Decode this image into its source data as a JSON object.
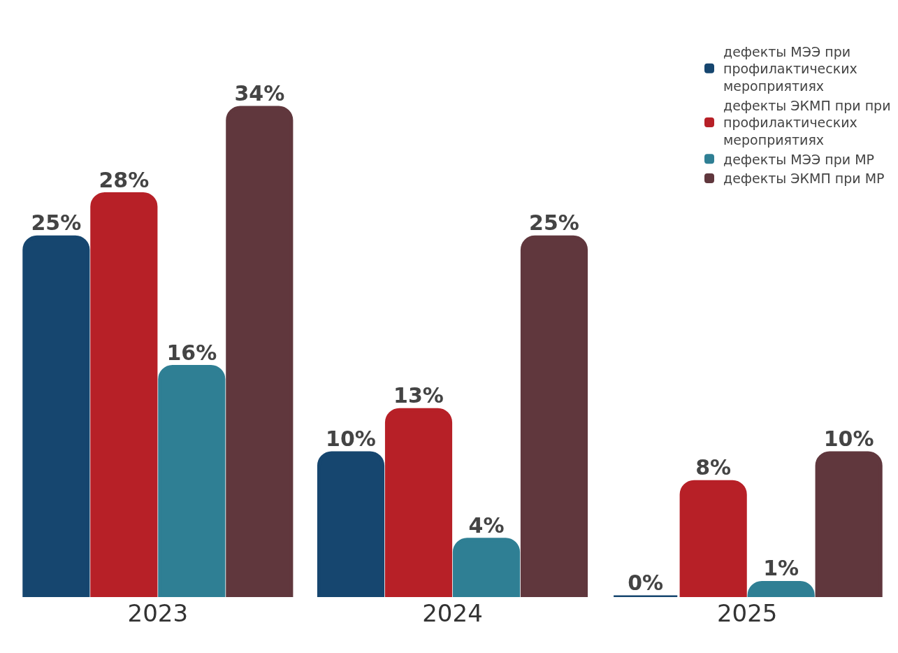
{
  "chart_data": {
    "type": "bar",
    "categories": [
      "2023",
      "2024",
      "2025"
    ],
    "series": [
      {
        "name": "дефекты МЭЭ при профилактических мероприятиях",
        "color": "#16466f",
        "values": [
          25,
          10,
          0
        ],
        "value_labels": [
          "25%",
          "10%",
          "0%"
        ]
      },
      {
        "name": "дефекты ЭКМП при при профилактических мероприятиях",
        "color": "#b72027",
        "values": [
          28,
          13,
          8
        ],
        "value_labels": [
          "28%",
          "13%",
          "8%"
        ]
      },
      {
        "name": "дефекты МЭЭ при МР",
        "color": "#2f7f94",
        "values": [
          16,
          4,
          1
        ],
        "value_labels": [
          "16%",
          "4%",
          "1%"
        ]
      },
      {
        "name": "дефекты ЭКМП при МР",
        "color": "#60373d",
        "values": [
          34,
          25,
          10
        ],
        "value_labels": [
          "34%",
          "25%",
          "10%"
        ]
      }
    ],
    "grid": false,
    "legend": "top right",
    "tick_labels": "x"
  }
}
